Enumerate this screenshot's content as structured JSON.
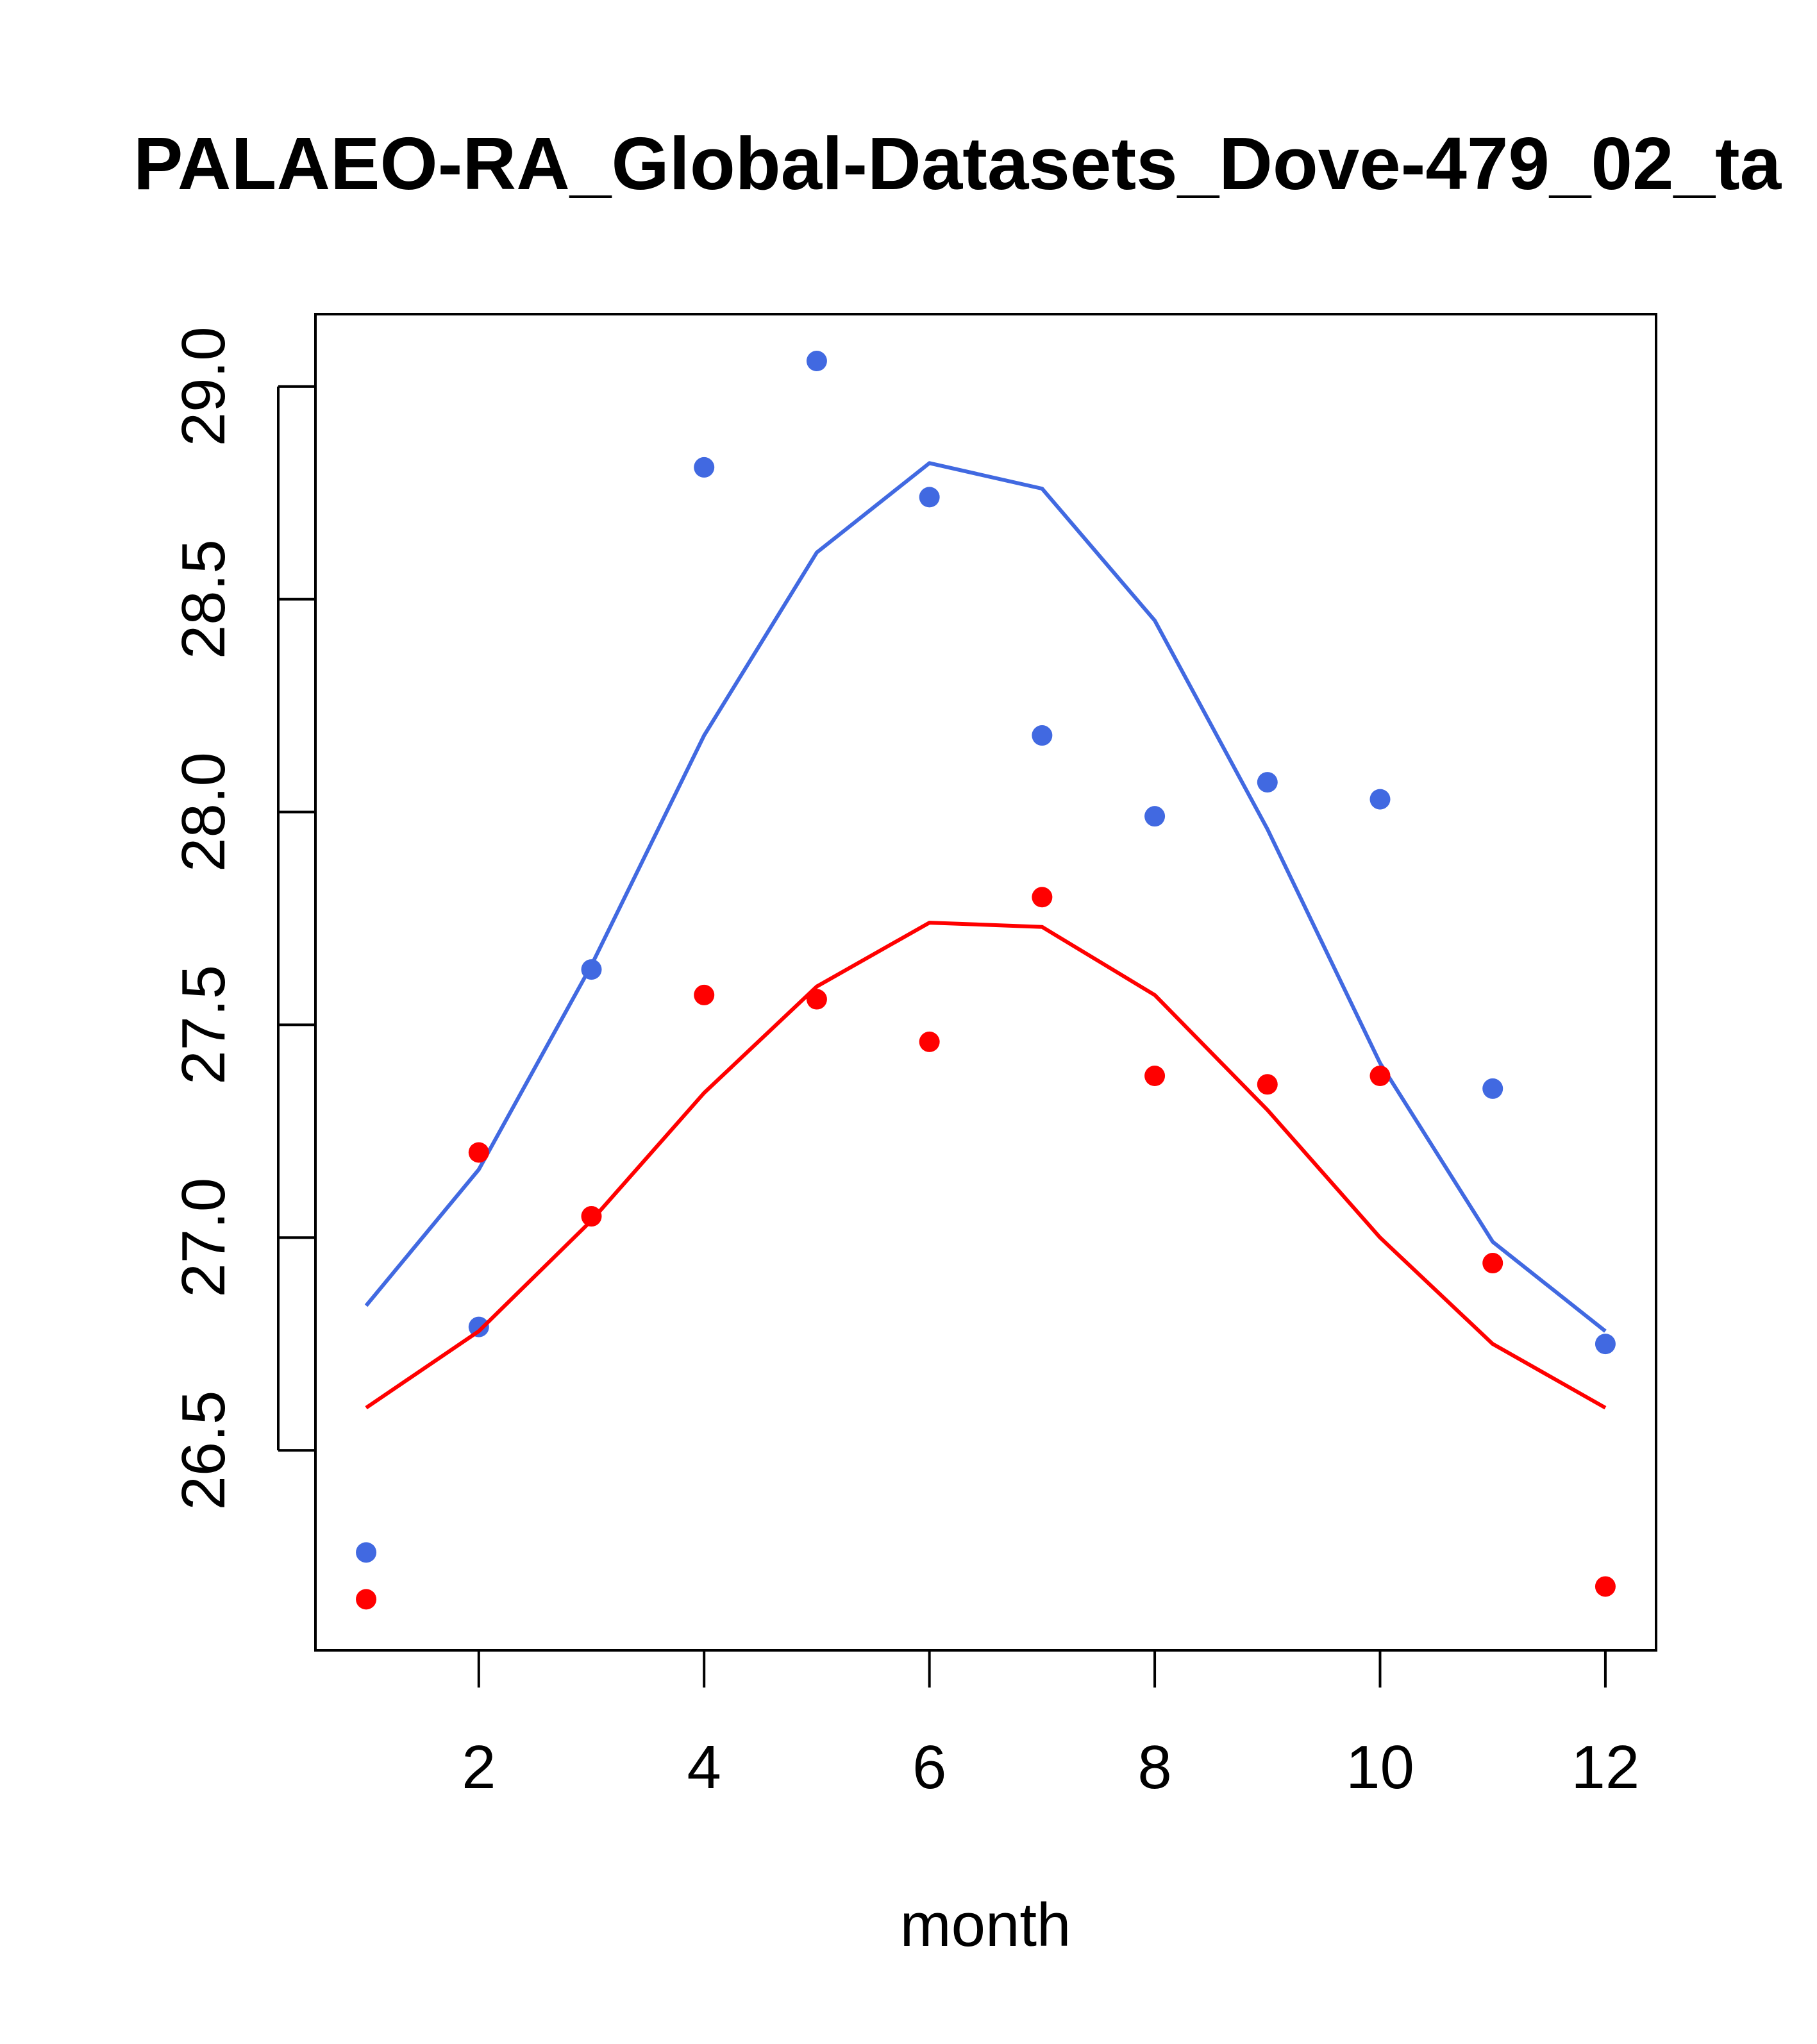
{
  "chart_data": {
    "type": "line",
    "title": "PALAEO-RA_Global-Datasets_Dove-479_02_ta",
    "xlabel": "month",
    "ylabel": "",
    "xlim": [
      0.55,
      12.45
    ],
    "ylim": [
      26.03,
      29.17
    ],
    "x_ticks": [
      2,
      4,
      6,
      8,
      10,
      12
    ],
    "x_tick_labels": [
      "2",
      "4",
      "6",
      "8",
      "10",
      "12"
    ],
    "y_ticks": [
      26.5,
      27.0,
      27.5,
      28.0,
      28.5,
      29.0
    ],
    "y_tick_labels": [
      "26.5",
      "27.0",
      "27.5",
      "28.0",
      "28.5",
      "29.0"
    ],
    "grid": false,
    "x": [
      1,
      2,
      3,
      4,
      5,
      6,
      7,
      8,
      9,
      10,
      11,
      12
    ],
    "series": [
      {
        "name": "blue-line",
        "kind": "line",
        "color": "#4169e1",
        "values": [
          26.84,
          27.16,
          27.64,
          28.18,
          28.61,
          28.82,
          28.76,
          28.45,
          27.96,
          27.41,
          26.99,
          26.78
        ]
      },
      {
        "name": "blue-points",
        "kind": "points",
        "color": "#4169e1",
        "values": [
          26.26,
          26.79,
          27.63,
          28.81,
          29.06,
          28.74,
          28.18,
          27.99,
          28.07,
          28.03,
          27.35,
          26.75
        ]
      },
      {
        "name": "red-line",
        "kind": "line",
        "color": "#ff0000",
        "values": [
          26.6,
          26.78,
          27.04,
          27.34,
          27.59,
          27.74,
          27.73,
          27.57,
          27.3,
          27.0,
          26.75,
          26.6
        ]
      },
      {
        "name": "red-points",
        "kind": "points",
        "color": "#ff0000",
        "values": [
          26.15,
          27.2,
          27.05,
          27.57,
          27.56,
          27.46,
          27.8,
          27.38,
          27.36,
          27.38,
          26.94,
          26.18
        ]
      }
    ]
  }
}
